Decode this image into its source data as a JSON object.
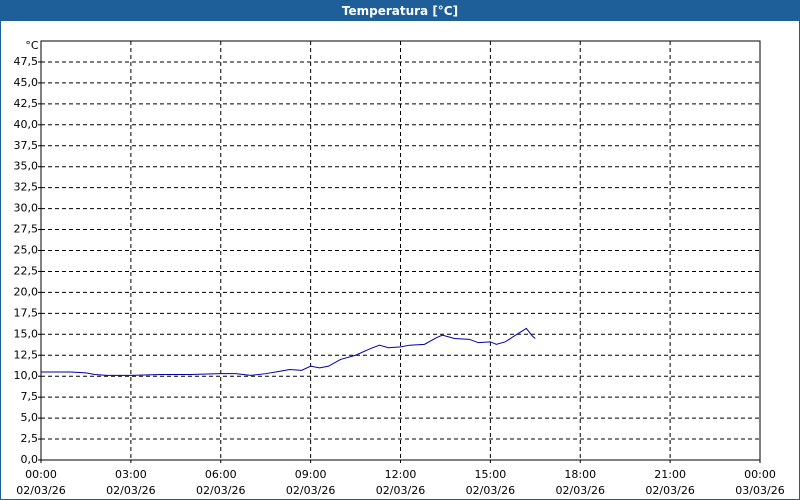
{
  "chart_data": {
    "type": "line",
    "title": "Temperatura [°C]",
    "y_label": "°C",
    "x": [
      0,
      0.5,
      1,
      1.5,
      1.8,
      2.2,
      3,
      4,
      5,
      6,
      6.5,
      7,
      7.5,
      8,
      8.3,
      8.7,
      9,
      9.3,
      9.6,
      10,
      10.5,
      11,
      11.3,
      11.6,
      12,
      12.3,
      12.8,
      13.2,
      13.4,
      13.8,
      14.3,
      14.6,
      15,
      15.2,
      15.5,
      15.8,
      16.2,
      16.4,
      16.5
    ],
    "series": [
      {
        "name": "Temperatura",
        "color": "#0000a8",
        "values": [
          10.5,
          10.5,
          10.5,
          10.4,
          10.2,
          10.1,
          10.1,
          10.2,
          10.2,
          10.3,
          10.3,
          10.1,
          10.3,
          10.6,
          10.8,
          10.7,
          11.2,
          11.0,
          11.2,
          12.0,
          12.5,
          13.3,
          13.7,
          13.4,
          13.5,
          13.7,
          13.8,
          14.6,
          14.9,
          14.5,
          14.4,
          14.0,
          14.1,
          13.8,
          14.1,
          14.8,
          15.7,
          14.8,
          14.5
        ]
      }
    ],
    "xlim": [
      0,
      24
    ],
    "xticks": [
      {
        "value": 0,
        "label": "00:00",
        "date": "02/03/26"
      },
      {
        "value": 3,
        "label": "03:00",
        "date": "02/03/26"
      },
      {
        "value": 6,
        "label": "06:00",
        "date": "02/03/26"
      },
      {
        "value": 9,
        "label": "09:00",
        "date": "02/03/26"
      },
      {
        "value": 12,
        "label": "12:00",
        "date": "02/03/26"
      },
      {
        "value": 15,
        "label": "15:00",
        "date": "02/03/26"
      },
      {
        "value": 18,
        "label": "18:00",
        "date": "02/03/26"
      },
      {
        "value": 21,
        "label": "21:00",
        "date": "02/03/26"
      },
      {
        "value": 24,
        "label": "00:00",
        "date": "03/03/26"
      }
    ],
    "ylim": [
      0,
      50
    ],
    "yticks": [
      {
        "value": 0,
        "label": "0,0"
      },
      {
        "value": 2.5,
        "label": "2,5"
      },
      {
        "value": 5,
        "label": "5,0"
      },
      {
        "value": 7.5,
        "label": "7,5"
      },
      {
        "value": 10,
        "label": "10,0"
      },
      {
        "value": 12.5,
        "label": "12,5"
      },
      {
        "value": 15,
        "label": "15,0"
      },
      {
        "value": 17.5,
        "label": "17,5"
      },
      {
        "value": 20,
        "label": "20,0"
      },
      {
        "value": 22.5,
        "label": "22,5"
      },
      {
        "value": 25,
        "label": "25,0"
      },
      {
        "value": 27.5,
        "label": "27,5"
      },
      {
        "value": 30,
        "label": "30,0"
      },
      {
        "value": 32.5,
        "label": "32,5"
      },
      {
        "value": 35,
        "label": "35,0"
      },
      {
        "value": 37.5,
        "label": "37,5"
      },
      {
        "value": 40,
        "label": "40,0"
      },
      {
        "value": 42.5,
        "label": "42,5"
      },
      {
        "value": 45,
        "label": "45,0"
      },
      {
        "value": 47.5,
        "label": "47,5"
      }
    ],
    "grid": true
  }
}
